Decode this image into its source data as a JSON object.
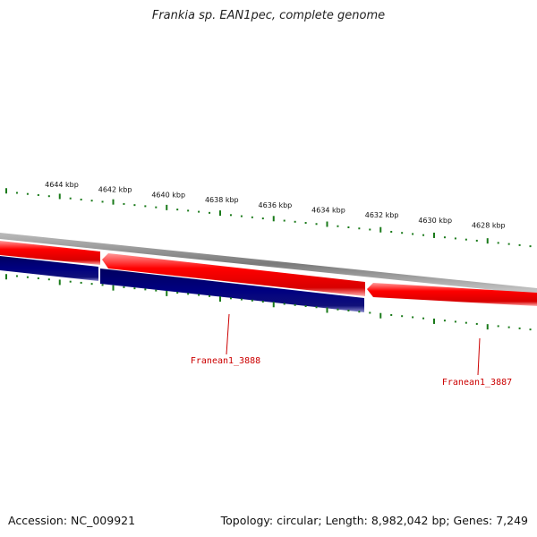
{
  "title": "Frankia sp. EAN1pec, complete genome",
  "accession_label": "Accession: NC_009921",
  "topology_label": "Topology: circular; Length: 8,982,042 bp; Genes: 7,249",
  "colors": {
    "forward_gene": "#ff0000",
    "reverse_gene": "#000080",
    "backbone": "#888888",
    "ticks": "#1a7a1a",
    "gene_label": "#cc0000"
  },
  "ticks": {
    "unit": "kbp",
    "labels": [
      "4644 kbp",
      "4642 kbp",
      "4640 kbp",
      "4638 kbp",
      "4636 kbp",
      "4634 kbp",
      "4632 kbp",
      "4630 kbp",
      "4628 kbp"
    ]
  },
  "genes": [
    {
      "name": "Franean1_3888",
      "strand": "reverse"
    },
    {
      "name": "Franean1_3887",
      "strand": "forward"
    }
  ]
}
